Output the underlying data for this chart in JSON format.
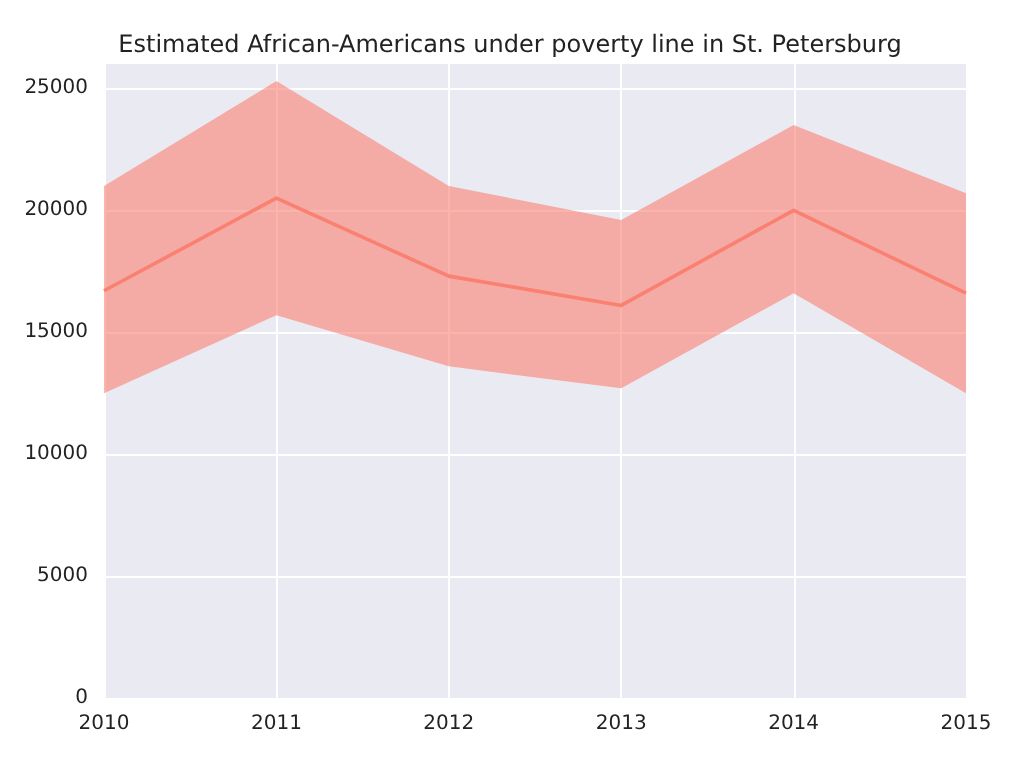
{
  "chart_data": {
    "type": "line",
    "title": "Estimated African-Americans under poverty line in St. Petersburg",
    "x": [
      2010,
      2011,
      2012,
      2013,
      2014,
      2015
    ],
    "series": [
      {
        "color": "#fa8072",
        "values": [
          16700,
          20500,
          17300,
          16100,
          20000,
          16600
        ],
        "lower": [
          12500,
          15700,
          13600,
          12700,
          16600,
          12500
        ],
        "upper": [
          21000,
          25300,
          21000,
          19600,
          23500,
          20700
        ]
      }
    ],
    "xlim": [
      2010,
      2015
    ],
    "xticks": [
      2010,
      2011,
      2012,
      2013,
      2014,
      2015
    ],
    "ylim": [
      0,
      26000
    ],
    "yticks": [
      0,
      5000,
      10000,
      15000,
      20000,
      25000
    ],
    "grid": true,
    "marker": "none",
    "line_style": "solid"
  }
}
